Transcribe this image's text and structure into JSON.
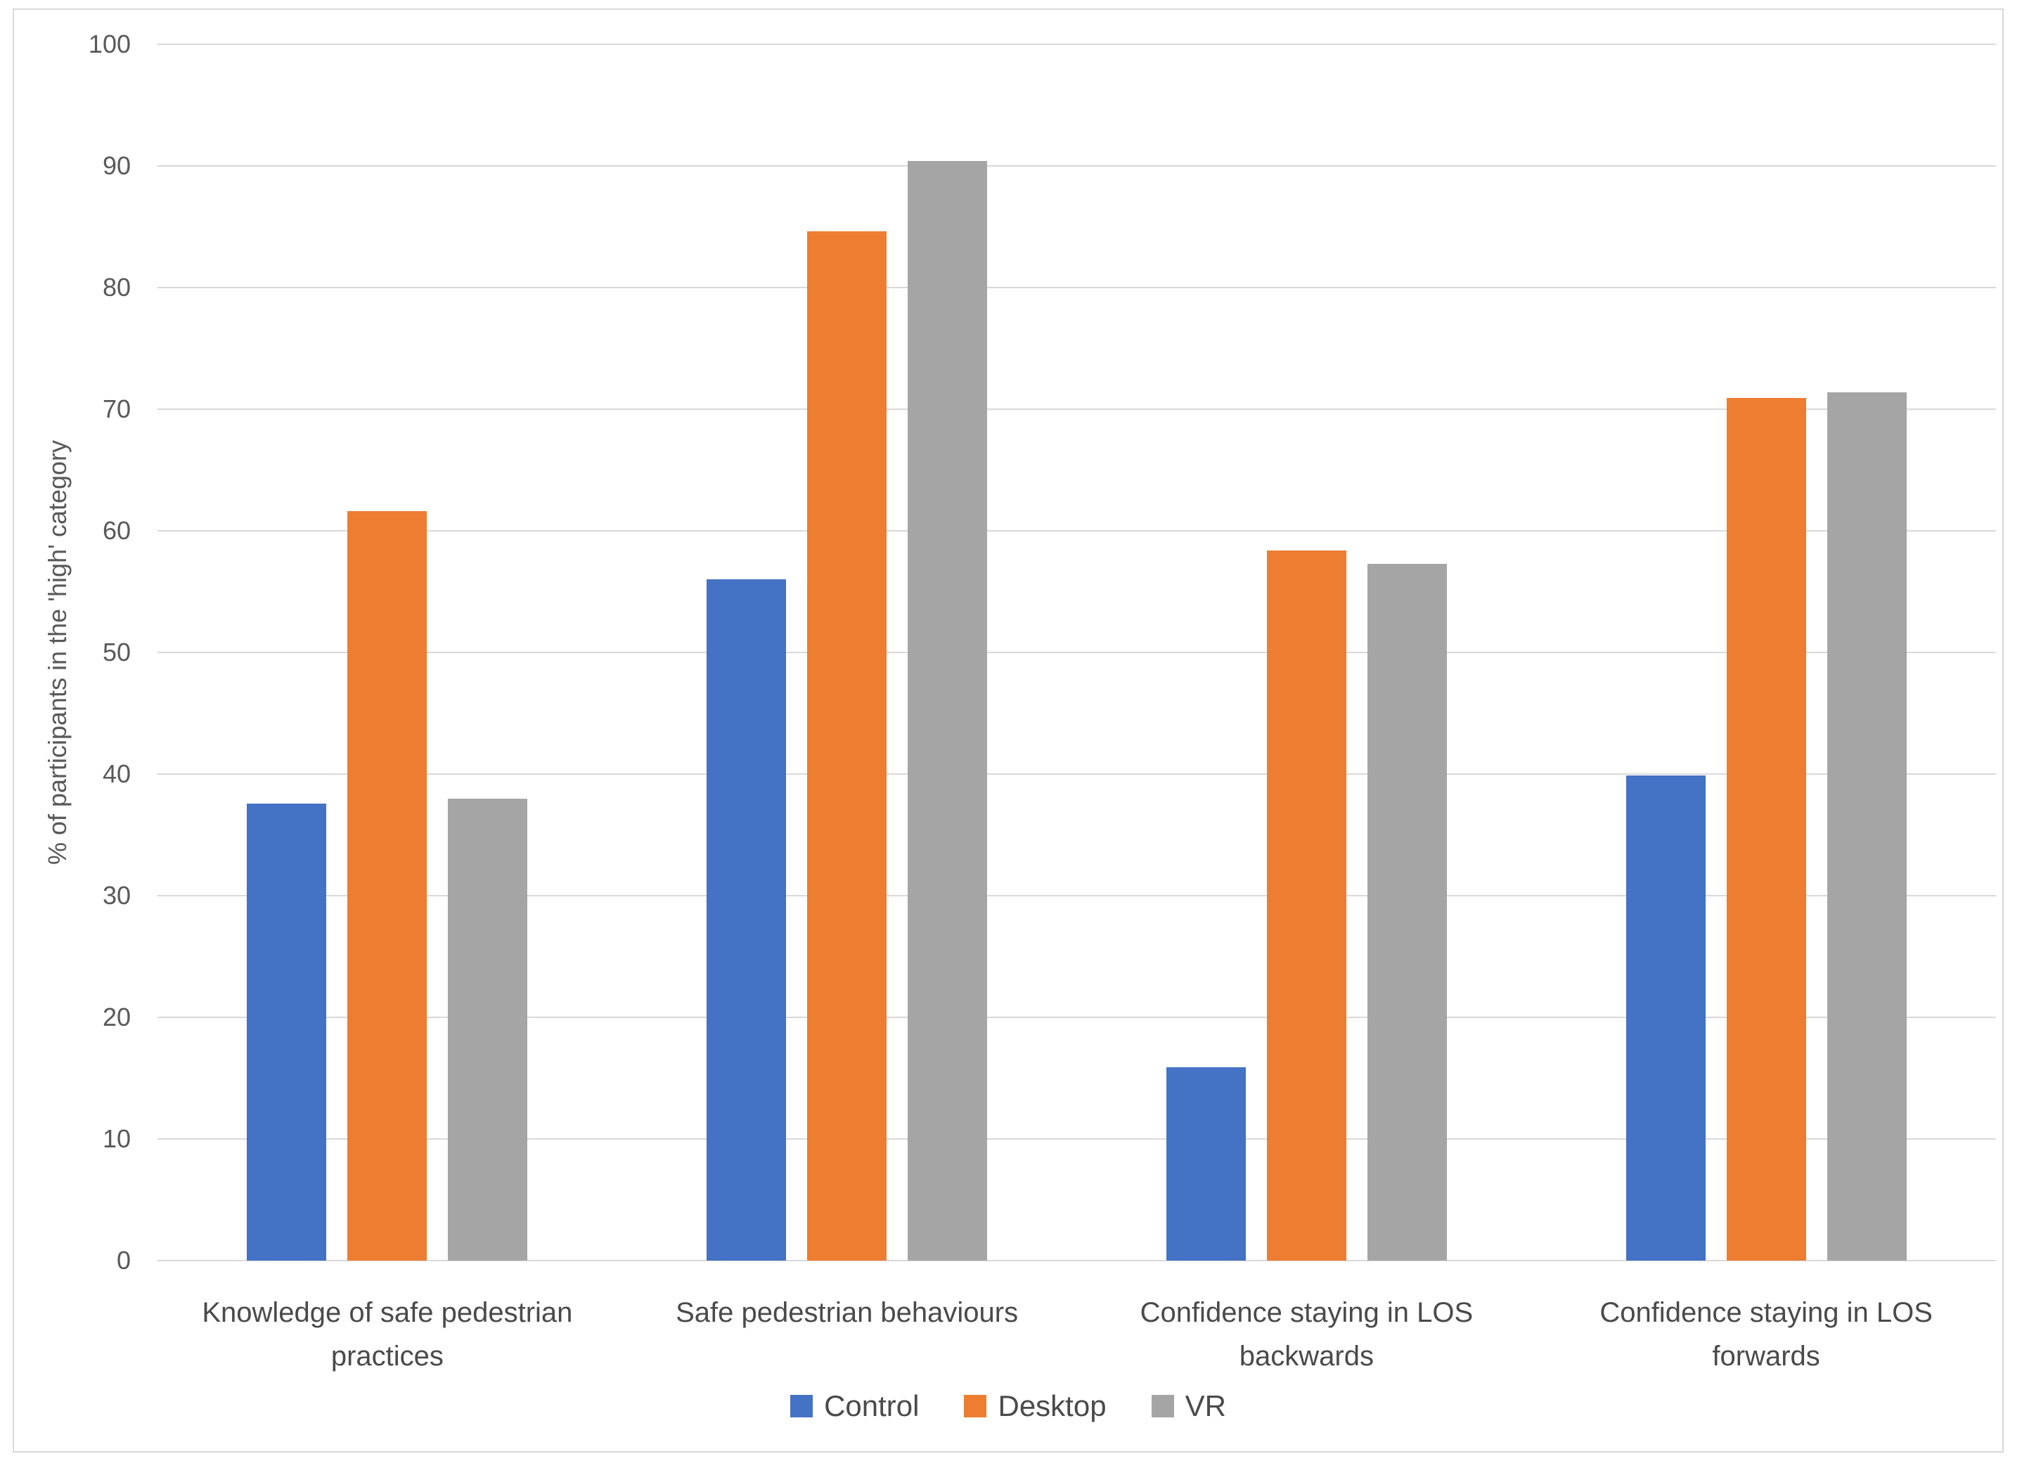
{
  "chart_data": {
    "type": "bar",
    "categories": [
      "Knowledge of safe pedestrian practices",
      "Safe pedestrian behaviours",
      "Confidence staying in LOS backwards",
      "Confidence staying in LOS forwards"
    ],
    "series": [
      {
        "name": "Control",
        "color": "#4472C4",
        "values": [
          37.6,
          56.0,
          15.9,
          39.9
        ]
      },
      {
        "name": "Desktop",
        "color": "#ED7D31",
        "values": [
          61.6,
          84.6,
          58.4,
          70.9
        ]
      },
      {
        "name": "VR",
        "color": "#A5A5A5",
        "values": [
          38.0,
          90.4,
          57.3,
          71.4
        ]
      }
    ],
    "title": "",
    "xlabel": "",
    "ylabel": "% of participants in the 'high' category",
    "ylim": [
      0,
      100
    ],
    "ytick_step": 10,
    "yticks": [
      0,
      10,
      20,
      30,
      40,
      50,
      60,
      70,
      80,
      90,
      100
    ],
    "grid": true,
    "legend_position": "bottom",
    "colors": {
      "gridline": "#d9d9d9",
      "figure_border": "#d8d8d8",
      "tick_text": "#595959",
      "label_text": "#4a4a4a",
      "background": "#ffffff"
    }
  }
}
